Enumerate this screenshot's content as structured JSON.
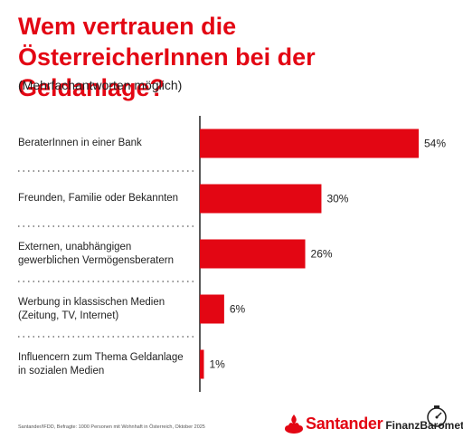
{
  "header": {
    "title": "Wem vertrauen die ÖsterreicherInnen bei der Geldanlage?",
    "subtitle": "(Mehrfachantworten möglich)"
  },
  "chart_data": {
    "type": "bar",
    "orientation": "horizontal",
    "categories": [
      "BeraterInnen in einer Bank",
      "Freunden, Familie oder Bekannten",
      "Externen, unabhängigen gewerblichen Vermögensberatern",
      "Werbung in klassischen Medien (Zeitung, TV, Internet)",
      "Influencern zum Thema Geldanlage in sozialen Medien"
    ],
    "values": [
      54,
      30,
      26,
      6,
      1
    ],
    "value_labels": [
      "54%",
      "30%",
      "26%",
      "6%",
      "1%"
    ],
    "xlim": [
      0,
      60
    ],
    "bar_color": "#e30613",
    "grid": false
  },
  "footer": {
    "source": "Santander/IFDD, Befragte: 1000 Personen mit Wohnhaft in Österreich, Oktober 2025",
    "brand": "Santander",
    "product": "FinanzBarometer"
  },
  "colors": {
    "accent": "#e30613",
    "text": "#222222"
  }
}
